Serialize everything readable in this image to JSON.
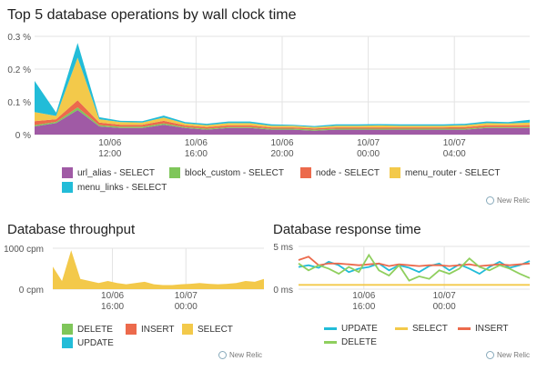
{
  "watermark": "New Relic",
  "chart_data": [
    {
      "type": "area",
      "stacked": true,
      "title": "Top 5 database operations by wall clock time",
      "ylim": [
        0,
        0.3
      ],
      "y_ticks": [
        {
          "value": 0,
          "label": "0 %"
        },
        {
          "value": 0.1,
          "label": "0.1 %"
        },
        {
          "value": 0.2,
          "label": "0.2 %"
        },
        {
          "value": 0.3,
          "label": "0.3 %"
        }
      ],
      "x_ticks": [
        {
          "i": 3.5,
          "line1": "10/06",
          "line2": "12:00"
        },
        {
          "i": 7.5,
          "line1": "10/06",
          "line2": "16:00"
        },
        {
          "i": 11.5,
          "line1": "10/06",
          "line2": "20:00"
        },
        {
          "i": 15.5,
          "line1": "10/07",
          "line2": "00:00"
        },
        {
          "i": 19.5,
          "line1": "10/07",
          "line2": "04:00"
        }
      ],
      "grid": true,
      "legend_position": "bottom",
      "series": [
        {
          "name": "url_alias - SELECT",
          "color": "#a05aa5",
          "values": [
            0.025,
            0.035,
            0.075,
            0.025,
            0.02,
            0.02,
            0.03,
            0.02,
            0.015,
            0.02,
            0.02,
            0.015,
            0.015,
            0.012,
            0.015,
            0.015,
            0.015,
            0.015,
            0.015,
            0.015,
            0.015,
            0.02,
            0.02,
            0.02
          ]
        },
        {
          "name": "block_custom - SELECT",
          "color": "#7fc65a",
          "values": [
            0.004,
            0.004,
            0.008,
            0.004,
            0.004,
            0.004,
            0.004,
            0.003,
            0.003,
            0.003,
            0.003,
            0.003,
            0.003,
            0.003,
            0.003,
            0.003,
            0.003,
            0.003,
            0.003,
            0.003,
            0.003,
            0.003,
            0.003,
            0.003
          ]
        },
        {
          "name": "node - SELECT",
          "color": "#ec6a4c",
          "values": [
            0.012,
            0.008,
            0.022,
            0.008,
            0.006,
            0.006,
            0.008,
            0.005,
            0.005,
            0.005,
            0.005,
            0.004,
            0.004,
            0.004,
            0.004,
            0.004,
            0.004,
            0.004,
            0.004,
            0.004,
            0.005,
            0.005,
            0.005,
            0.006
          ]
        },
        {
          "name": "menu_router - SELECT",
          "color": "#f3c94a",
          "values": [
            0.028,
            0.01,
            0.13,
            0.01,
            0.008,
            0.007,
            0.01,
            0.006,
            0.006,
            0.007,
            0.007,
            0.005,
            0.005,
            0.004,
            0.005,
            0.005,
            0.006,
            0.005,
            0.005,
            0.005,
            0.006,
            0.007,
            0.006,
            0.008
          ]
        },
        {
          "name": "menu_links - SELECT",
          "color": "#22bcd8",
          "values": [
            0.095,
            0.01,
            0.045,
            0.006,
            0.004,
            0.004,
            0.006,
            0.004,
            0.004,
            0.005,
            0.005,
            0.004,
            0.003,
            0.003,
            0.004,
            0.004,
            0.004,
            0.004,
            0.004,
            0.004,
            0.004,
            0.005,
            0.004,
            0.008
          ]
        }
      ]
    },
    {
      "type": "area",
      "title": "Database throughput",
      "ylim": [
        0,
        1000
      ],
      "y_ticks": [
        {
          "value": 0,
          "label": "0 cpm"
        },
        {
          "value": 1000,
          "label": "1000 cpm"
        }
      ],
      "x_ticks": [
        {
          "i": 6.5,
          "line1": "10/06",
          "line2": "16:00"
        },
        {
          "i": 14.5,
          "line1": "10/07",
          "line2": "00:00"
        }
      ],
      "grid": true,
      "legend_position": "bottom",
      "series": [
        {
          "name": "DELETE",
          "color": "#7fc65a",
          "values": [
            0,
            0,
            0,
            0,
            0,
            0,
            0,
            0,
            0,
            0,
            0,
            0,
            0,
            0,
            0,
            0,
            0,
            0,
            0,
            0,
            0,
            0,
            0,
            0
          ]
        },
        {
          "name": "INSERT",
          "color": "#ec6a4c",
          "values": [
            0,
            0,
            0,
            0,
            0,
            0,
            0,
            0,
            0,
            0,
            0,
            0,
            0,
            0,
            0,
            0,
            0,
            0,
            0,
            0,
            0,
            0,
            0,
            0
          ]
        },
        {
          "name": "SELECT",
          "color": "#f3c94a",
          "values": [
            550,
            200,
            950,
            250,
            200,
            150,
            200,
            150,
            120,
            150,
            180,
            120,
            100,
            100,
            120,
            130,
            150,
            130,
            120,
            130,
            150,
            200,
            180,
            250
          ]
        },
        {
          "name": "UPDATE",
          "color": "#22bcd8",
          "values": [
            0,
            0,
            0,
            0,
            0,
            0,
            0,
            0,
            0,
            0,
            0,
            0,
            0,
            0,
            0,
            0,
            0,
            0,
            0,
            0,
            0,
            0,
            0,
            0
          ]
        }
      ]
    },
    {
      "type": "line",
      "title": "Database response time",
      "ylim": [
        0,
        5
      ],
      "y_ticks": [
        {
          "value": 0,
          "label": "0 ms"
        },
        {
          "value": 5,
          "label": "5 ms"
        }
      ],
      "x_ticks": [
        {
          "i": 6.5,
          "line1": "10/06",
          "line2": "16:00"
        },
        {
          "i": 14.5,
          "line1": "10/07",
          "line2": "00:00"
        }
      ],
      "grid": true,
      "legend_position": "bottom",
      "series": [
        {
          "name": "UPDATE",
          "color": "#22bcd8",
          "values": [
            2.6,
            2.8,
            2.5,
            3.2,
            2.8,
            2.0,
            2.4,
            2.6,
            3.0,
            2.2,
            2.8,
            2.5,
            2.0,
            2.7,
            3.0,
            2.2,
            2.9,
            2.4,
            1.8,
            2.6,
            3.2,
            2.5,
            2.8,
            3.3
          ]
        },
        {
          "name": "SELECT",
          "color": "#f3c94a",
          "values": [
            0.5,
            0.5,
            0.5,
            0.5,
            0.5,
            0.5,
            0.5,
            0.5,
            0.5,
            0.5,
            0.5,
            0.5,
            0.5,
            0.5,
            0.5,
            0.5,
            0.5,
            0.5,
            0.5,
            0.5,
            0.5,
            0.5,
            0.5,
            0.5
          ]
        },
        {
          "name": "INSERT",
          "color": "#ec6a4c",
          "values": [
            3.4,
            3.8,
            2.8,
            3.0,
            3.0,
            2.9,
            2.8,
            2.9,
            3.0,
            2.7,
            2.9,
            2.8,
            2.7,
            2.8,
            2.8,
            2.7,
            2.8,
            2.9,
            2.7,
            2.8,
            2.9,
            2.8,
            2.9,
            3.0
          ]
        },
        {
          "name": "DELETE",
          "color": "#8fcf5e",
          "values": [
            3.0,
            2.2,
            2.8,
            2.4,
            1.8,
            2.6,
            2.0,
            4.0,
            2.2,
            1.6,
            2.8,
            1.0,
            1.5,
            1.2,
            2.2,
            1.8,
            2.4,
            3.6,
            2.6,
            2.2,
            2.8,
            2.4,
            1.8,
            1.3
          ]
        }
      ]
    }
  ]
}
